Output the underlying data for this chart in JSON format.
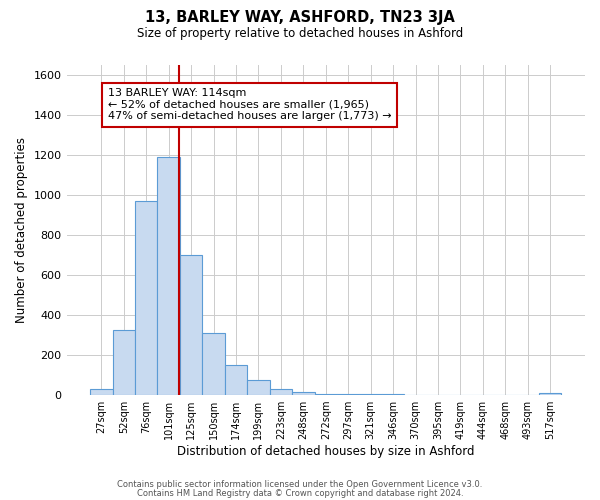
{
  "title": "13, BARLEY WAY, ASHFORD, TN23 3JA",
  "subtitle": "Size of property relative to detached houses in Ashford",
  "xlabel": "Distribution of detached houses by size in Ashford",
  "ylabel": "Number of detached properties",
  "footer_lines": [
    "Contains HM Land Registry data © Crown copyright and database right 2024.",
    "Contains public sector information licensed under the Open Government Licence v3.0."
  ],
  "bin_labels": [
    "27sqm",
    "52sqm",
    "76sqm",
    "101sqm",
    "125sqm",
    "150sqm",
    "174sqm",
    "199sqm",
    "223sqm",
    "248sqm",
    "272sqm",
    "297sqm",
    "321sqm",
    "346sqm",
    "370sqm",
    "395sqm",
    "419sqm",
    "444sqm",
    "468sqm",
    "493sqm",
    "517sqm"
  ],
  "bar_values": [
    27,
    325,
    970,
    1190,
    700,
    310,
    150,
    75,
    27,
    15,
    5,
    3,
    2,
    1,
    0,
    0,
    0,
    0,
    0,
    0,
    8
  ],
  "bar_color": "#c8daf0",
  "bar_edge_color": "#5b9bd5",
  "vline_color": "#c00000",
  "vline_pos": 3.45,
  "annotation_text": "13 BARLEY WAY: 114sqm\n← 52% of detached houses are smaller (1,965)\n47% of semi-detached houses are larger (1,773) →",
  "annotation_box_edge_color": "#c00000",
  "ylim": [
    0,
    1650
  ],
  "yticks": [
    0,
    200,
    400,
    600,
    800,
    1000,
    1200,
    1400,
    1600
  ],
  "background_color": "#ffffff",
  "grid_color": "#cccccc"
}
